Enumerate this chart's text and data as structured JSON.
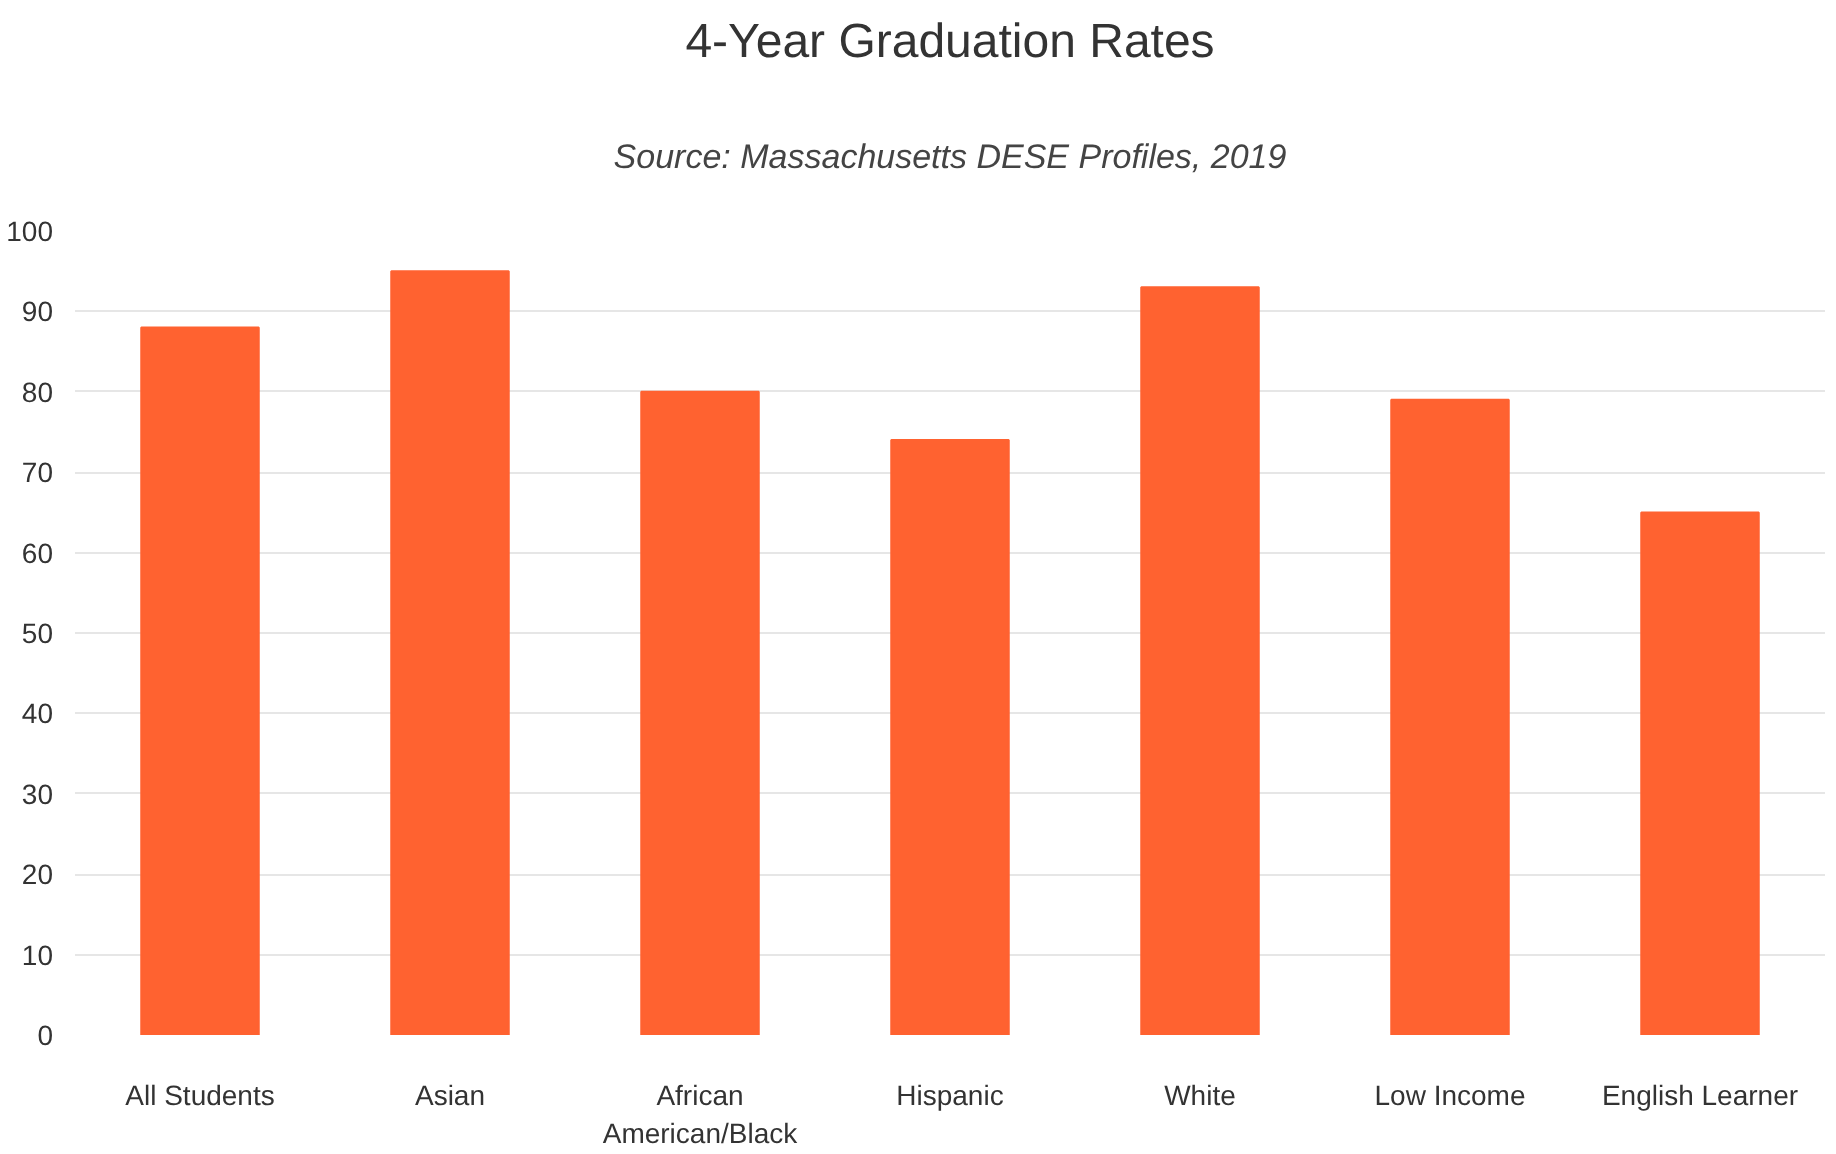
{
  "chart_data": {
    "type": "bar",
    "title": "4-Year Graduation Rates",
    "subtitle": "Source: Massachusetts DESE Profiles, 2019",
    "categories": [
      "All Students",
      "Asian",
      "African American/Black",
      "Hispanic",
      "White",
      "Low Income",
      "English Learner"
    ],
    "values": [
      88,
      95,
      80,
      74,
      93,
      79,
      65
    ],
    "color": "#ff6230",
    "ylim": [
      0,
      100
    ],
    "yticks": [
      0,
      10,
      20,
      30,
      40,
      50,
      60,
      70,
      80,
      90,
      100
    ],
    "grid": "y"
  }
}
